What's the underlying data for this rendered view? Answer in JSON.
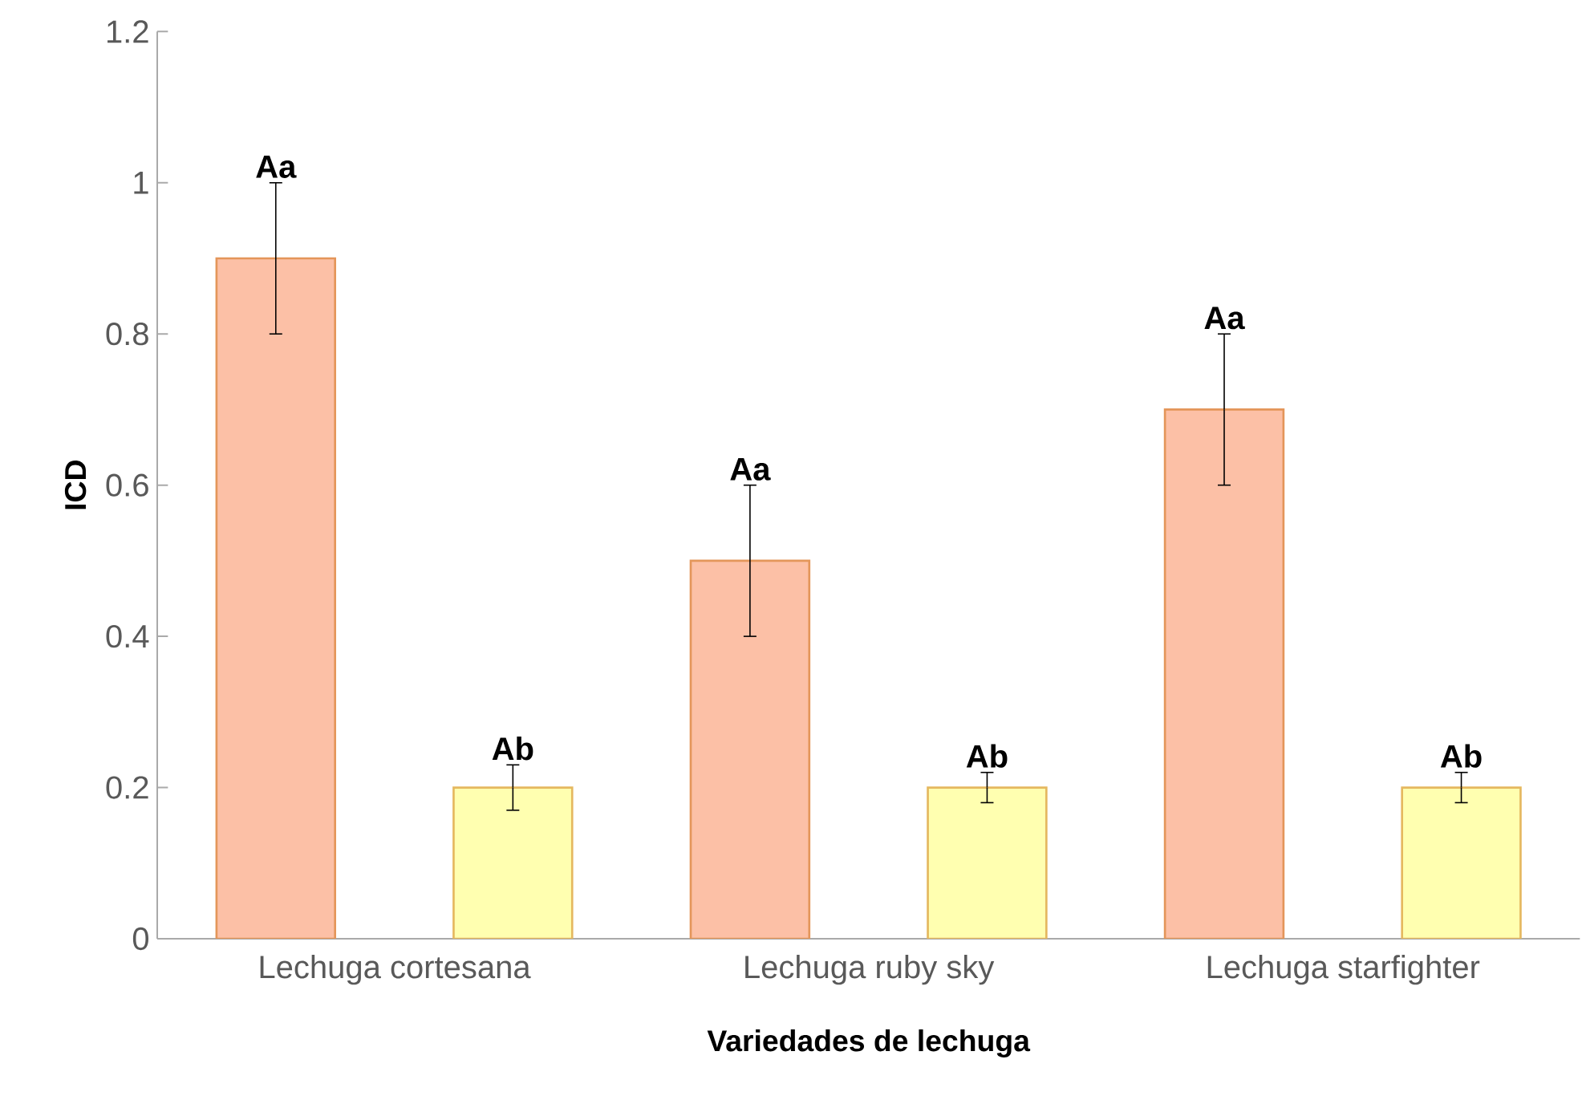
{
  "chart_data": {
    "type": "bar",
    "xlabel": "Variedades de lechuga",
    "ylabel": "ICD",
    "categories": [
      "Lechuga cortesana",
      "Lechuga ruby sky",
      "Lechuga starfighter"
    ],
    "series": [
      {
        "color": "#fcc0a6",
        "values": [
          0.9,
          0.5,
          0.7
        ],
        "errors": [
          0.1,
          0.1,
          0.1
        ]
      },
      {
        "color": "#ffffb0",
        "values": [
          0.2,
          0.2,
          0.2
        ],
        "errors": [
          0.03,
          0.02,
          0.02
        ]
      }
    ],
    "ylim": [
      0,
      1.2
    ],
    "yticks": [
      0,
      0.2,
      0.4,
      0.6,
      0.8,
      1,
      1.2
    ],
    "grid": false,
    "annotations": [
      "Aa",
      "Ab",
      "Aa",
      "Ab",
      "Aa",
      "Ab"
    ]
  }
}
